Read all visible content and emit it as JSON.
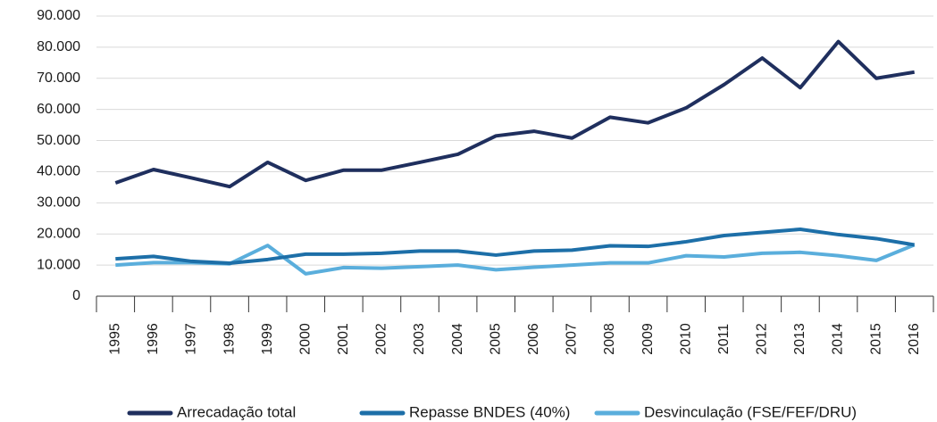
{
  "chart_data": {
    "type": "line",
    "categories": [
      "1995",
      "1996",
      "1997",
      "1998",
      "1999",
      "2000",
      "2001",
      "2002",
      "2003",
      "2004",
      "2005",
      "2006",
      "2007",
      "2008",
      "2009",
      "2010",
      "2011",
      "2012",
      "2013",
      "2014",
      "2015",
      "2016"
    ],
    "series": [
      {
        "name": "Arrecadação total",
        "color": "#1f2f5e",
        "values": [
          36400,
          40700,
          38000,
          35200,
          43000,
          37200,
          40500,
          40500,
          43000,
          45600,
          51500,
          53000,
          50800,
          57500,
          55700,
          60500,
          68000,
          76500,
          67000,
          81800,
          70000,
          72000
        ]
      },
      {
        "name": "Repasse BNDES (40%)",
        "color": "#1d6fa8",
        "values": [
          12000,
          12800,
          11200,
          10600,
          11800,
          13500,
          13500,
          13800,
          14500,
          14500,
          13200,
          14500,
          14800,
          16200,
          16000,
          17500,
          19500,
          20500,
          21500,
          19800,
          18500,
          16500
        ]
      },
      {
        "name": "Desvinculação (FSE/FEF/DRU)",
        "color": "#5aaedc",
        "values": [
          10000,
          10800,
          10800,
          10400,
          16300,
          7200,
          9200,
          9000,
          9500,
          10000,
          8500,
          9300,
          10000,
          10700,
          10700,
          13000,
          12600,
          13800,
          14100,
          13000,
          11500,
          16500
        ]
      }
    ],
    "ylim": [
      0,
      90000
    ],
    "yticks": [
      0,
      {
        "value": 10000,
        "label": "10.000"
      },
      {
        "value": 20000,
        "label": "20.000"
      },
      {
        "value": 30000,
        "label": "30.000"
      },
      {
        "value": 40000,
        "label": "40.000"
      },
      {
        "value": 50000,
        "label": "50.000"
      },
      {
        "value": 60000,
        "label": "60.000"
      },
      {
        "value": 70000,
        "label": "70.000"
      },
      {
        "value": 80000,
        "label": "80.000"
      },
      {
        "value": 90000,
        "label": "90.000"
      }
    ],
    "grid": true,
    "legend": "bottom"
  }
}
